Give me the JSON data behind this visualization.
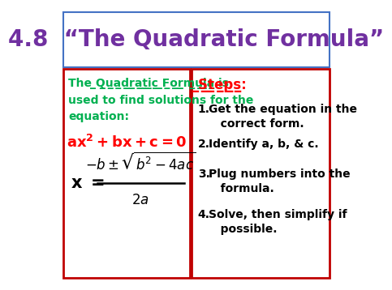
{
  "title": "4.8  “The Quadratic Formula”",
  "title_color": "#7030A0",
  "title_fontsize": 20,
  "bg_color": "#ffffff",
  "border_color": "#4472C4",
  "left_box_color": "#C00000",
  "right_box_color": "#C00000",
  "intro_text_color": "#00B050",
  "equation_color": "#FF0000",
  "formula_color": "#000000",
  "steps_color": "#FF0000",
  "steps_text_color": "#000000"
}
